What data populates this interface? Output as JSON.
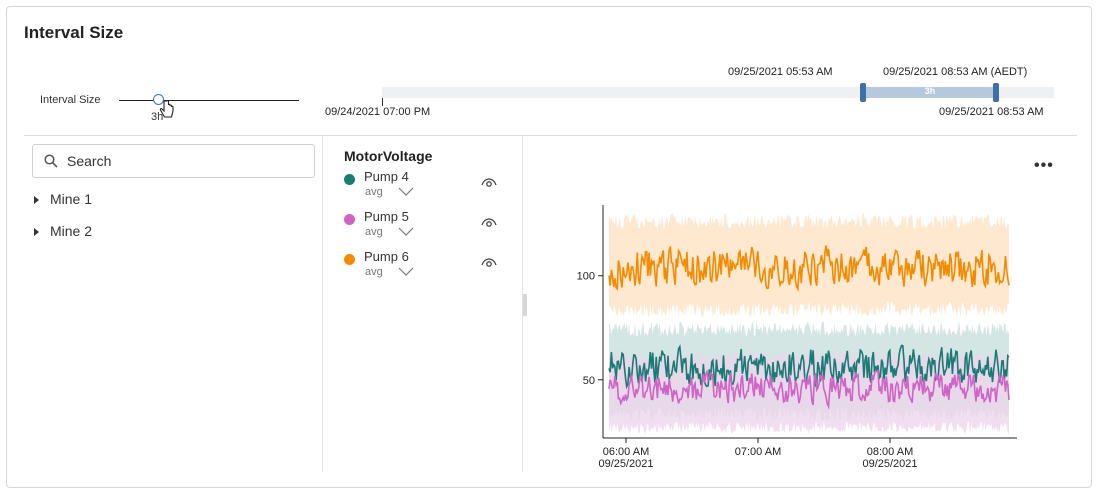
{
  "panel": {
    "title": "Interval Size"
  },
  "slider": {
    "label": "Interval Size",
    "value": "3h"
  },
  "timeline": {
    "range_start": "09/25/2021 05:53 AM",
    "range_end": "09/25/2021 08:53 AM (AEDT)",
    "range_label": "3h",
    "axis_start": "09/24/2021 07:00 PM",
    "axis_end": "09/25/2021 08:53 AM"
  },
  "search": {
    "placeholder": "Search"
  },
  "tree": [
    {
      "label": "Mine 1"
    },
    {
      "label": "Mine 2"
    }
  ],
  "legend": {
    "title": "MotorVoltage",
    "items": [
      {
        "name": "Pump 4",
        "aggregate": "avg",
        "color": "#1a7a74"
      },
      {
        "name": "Pump 5",
        "aggregate": "avg",
        "color": "#cf63c6"
      },
      {
        "name": "Pump 6",
        "aggregate": "avg",
        "color": "#f28b00"
      }
    ]
  },
  "more_menu": "•••",
  "chart_data": {
    "type": "line",
    "title": "",
    "xlabel": "",
    "ylabel": "",
    "y_ticks": [
      50,
      100
    ],
    "ylim": [
      22,
      134
    ],
    "x_ticks": [
      {
        "time": "06:00 AM",
        "date": "09/25/2021"
      },
      {
        "time": "07:00 AM",
        "date": ""
      },
      {
        "time": "08:00 AM",
        "date": "09/25/2021"
      }
    ],
    "x_range": [
      "09/25/2021 05:53 AM",
      "09/25/2021 08:53 AM"
    ],
    "series": [
      {
        "name": "Pump 4",
        "color": "#1a7a74",
        "band_color": "#c4dedb",
        "mean": 56,
        "band_min": 30,
        "band_max": 78
      },
      {
        "name": "Pump 5",
        "color": "#cf63c6",
        "band_color": "#eed3ec",
        "mean": 46,
        "band_min": 24,
        "band_max": 64
      },
      {
        "name": "Pump 6",
        "color": "#f28b00",
        "band_color": "#fde0c0",
        "mean": 104,
        "band_min": 80,
        "band_max": 130
      }
    ]
  }
}
